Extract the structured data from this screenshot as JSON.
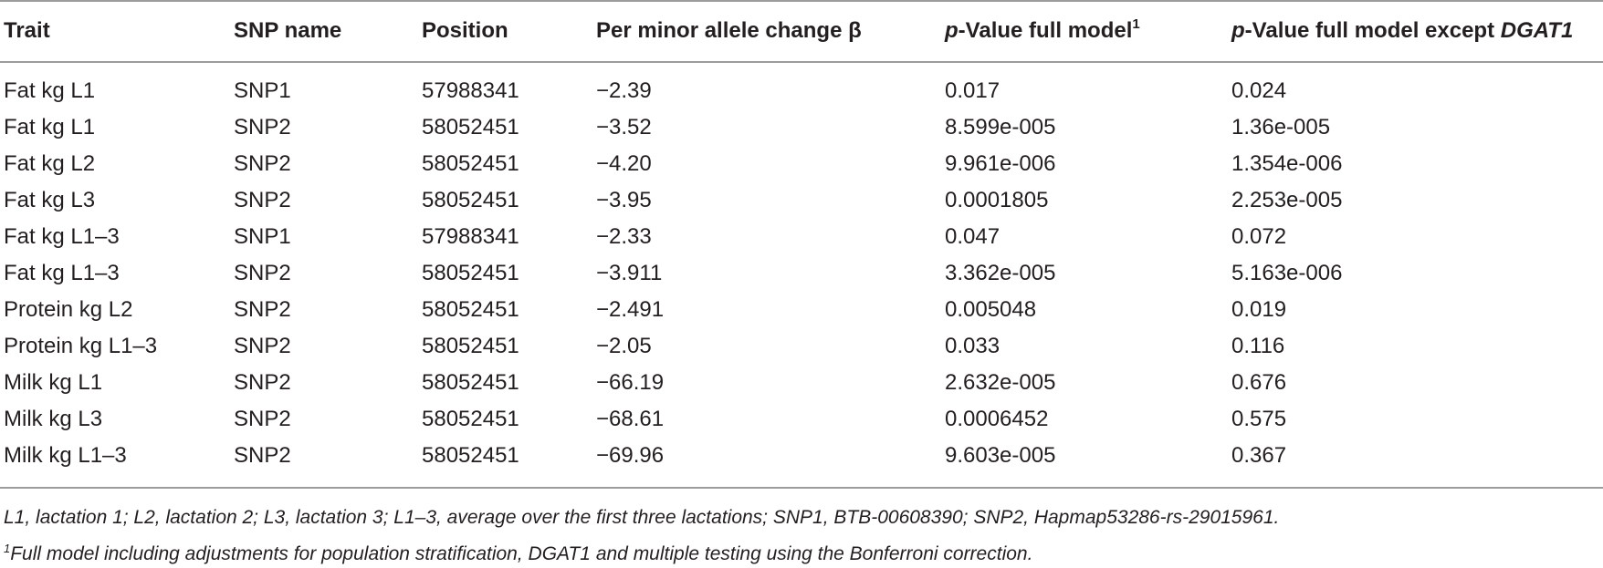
{
  "table": {
    "headers": {
      "trait": "Trait",
      "snp_name": "SNP name",
      "position": "Position",
      "beta": "Per minor allele change β",
      "p_full_prefix": "p",
      "p_full_rest": "-Value full model",
      "p_full_sup": "1",
      "p_except_prefix": "p",
      "p_except_rest": "-Value full model except ",
      "p_except_gene": "DGAT1"
    },
    "rows": [
      [
        "Fat kg L1",
        "SNP1",
        "57988341",
        "−2.39",
        "0.017",
        "0.024"
      ],
      [
        "Fat kg L1",
        "SNP2",
        "58052451",
        "−3.52",
        "8.599e-005",
        "1.36e-005"
      ],
      [
        "Fat kg L2",
        "SNP2",
        "58052451",
        "−4.20",
        "9.961e-006",
        "1.354e-006"
      ],
      [
        "Fat kg L3",
        "SNP2",
        "58052451",
        "−3.95",
        "0.0001805",
        "2.253e-005"
      ],
      [
        "Fat kg L1–3",
        "SNP1",
        "57988341",
        "−2.33",
        "0.047",
        "0.072"
      ],
      [
        "Fat kg L1–3",
        "SNP2",
        "58052451",
        "−3.911",
        "3.362e-005",
        "5.163e-006"
      ],
      [
        "Protein kg L2",
        "SNP2",
        "58052451",
        "−2.491",
        "0.005048",
        "0.019"
      ],
      [
        "Protein kg L1–3",
        "SNP2",
        "58052451",
        "−2.05",
        "0.033",
        "0.116"
      ],
      [
        "Milk kg L1",
        "SNP2",
        "58052451",
        "−66.19",
        "2.632e-005",
        "0.676"
      ],
      [
        "Milk kg L3",
        "SNP2",
        "58052451",
        "−68.61",
        "0.0006452",
        "0.575"
      ],
      [
        "Milk kg L1–3",
        "SNP2",
        "58052451",
        "−69.96",
        "9.603e-005",
        "0.367"
      ]
    ]
  },
  "footnotes": {
    "abbreviations": "L1, lactation 1; L2, lactation 2; L3, lactation 3; L1–3, average over the first three lactations; SNP1, BTB-00608390; SNP2, Hapmap53286-rs-29015961.",
    "note1_marker": "1",
    "note1_text": "Full model including adjustments for population stratification, DGAT1 and multiple testing using the Bonferroni correction."
  }
}
